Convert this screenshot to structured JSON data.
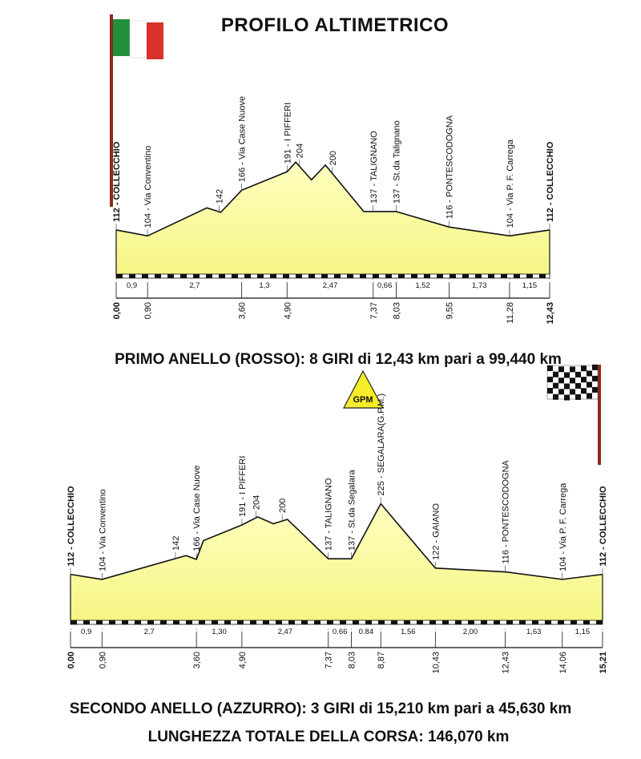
{
  "title": "PROFILO ALTIMETRICO",
  "colors": {
    "profile_fill": "#f6f585",
    "profile_fill_top": "#ffffc0",
    "profile_line": "#111111",
    "gpm_fill": "#f5ec2a",
    "flag_green": "#1f8f3a",
    "flag_red": "#d9312b",
    "checker_dark": "#111111",
    "pole": "#8b2a1a"
  },
  "icons": {
    "italian_flag": "italian-flag-icon",
    "checkered_flag": "checkered-flag-icon",
    "gpm": "gpm-triangle-icon"
  },
  "gpm_label": "GPM",
  "chart_data": [
    {
      "type": "area",
      "name": "primo-anello",
      "caption": "PRIMO ANELLO (ROSSO): 8 GIRI di 12,43 km pari a 99,440 km",
      "xlim": [
        0,
        12.43
      ],
      "profile": [
        [
          0.0,
          112
        ],
        [
          0.9,
          104
        ],
        [
          2.6,
          142
        ],
        [
          3.0,
          136
        ],
        [
          3.6,
          166
        ],
        [
          4.9,
          191
        ],
        [
          5.15,
          204
        ],
        [
          5.6,
          180
        ],
        [
          6.0,
          200
        ],
        [
          7.1,
          137
        ],
        [
          8.03,
          137
        ],
        [
          9.55,
          116
        ],
        [
          11.28,
          104
        ],
        [
          12.43,
          112
        ]
      ],
      "waypoints": [
        {
          "km": 0.0,
          "label": "112 - COLLECCHIO",
          "bold": true
        },
        {
          "km": 0.9,
          "label": "104 - Via Conventino"
        },
        {
          "km": 2.95,
          "label": "142"
        },
        {
          "km": 3.6,
          "label": "166 - Via Case Nuove"
        },
        {
          "km": 4.9,
          "label": "191 - I PIFFERI"
        },
        {
          "km": 5.25,
          "label": "204"
        },
        {
          "km": 6.2,
          "label": "200"
        },
        {
          "km": 7.37,
          "label": "137 - TALIGNANO"
        },
        {
          "km": 8.03,
          "label": "137 - St.da Talignano"
        },
        {
          "km": 9.55,
          "label": "116 - PONTESCODOGNA"
        },
        {
          "km": 11.28,
          "label": "104 - Via P. F. Carrega"
        },
        {
          "km": 12.43,
          "label": "112 - COLLECCHIO",
          "bold": true
        }
      ],
      "segments": [
        "0,9",
        "2,7",
        "1,3",
        "2,47",
        "0,66",
        "1,52",
        "1,73",
        "1,15"
      ],
      "km_marks": [
        "0,00",
        "0,90",
        "3,60",
        "4,90",
        "7,37",
        "8,03",
        "9,55",
        "11,28",
        "12,43"
      ]
    },
    {
      "type": "area",
      "name": "secondo-anello",
      "caption": "SECONDO ANELLO (AZZURRO): 3 GIRI di 15,210 km pari a 45,630 km",
      "xlim": [
        0,
        15.21
      ],
      "profile": [
        [
          0.0,
          112
        ],
        [
          0.9,
          104
        ],
        [
          3.3,
          142
        ],
        [
          3.6,
          136
        ],
        [
          3.8,
          166
        ],
        [
          4.9,
          191
        ],
        [
          5.35,
          204
        ],
        [
          5.8,
          193
        ],
        [
          6.2,
          200
        ],
        [
          7.37,
          137
        ],
        [
          8.03,
          137
        ],
        [
          8.87,
          225
        ],
        [
          10.43,
          122
        ],
        [
          12.43,
          116
        ],
        [
          14.06,
          104
        ],
        [
          15.21,
          112
        ]
      ],
      "waypoints": [
        {
          "km": 0.0,
          "label": "112 - COLLECCHIO",
          "bold": true
        },
        {
          "km": 0.9,
          "label": "104 - Via Conventino"
        },
        {
          "km": 3.0,
          "label": "142"
        },
        {
          "km": 3.6,
          "label": "166 - Via Case Nuove"
        },
        {
          "km": 4.9,
          "label": "191 - I PIFFERI"
        },
        {
          "km": 5.3,
          "label": "204"
        },
        {
          "km": 6.05,
          "label": "200"
        },
        {
          "km": 7.37,
          "label": "137 - TALIGNANO"
        },
        {
          "km": 8.03,
          "label": "137 - St.da Segalara"
        },
        {
          "km": 8.87,
          "label": "225 - SEGALARA(G.P.M.)"
        },
        {
          "km": 10.43,
          "label": "122 - GAIANO"
        },
        {
          "km": 12.43,
          "label": "116 - PONTESCODOGNA"
        },
        {
          "km": 14.06,
          "label": "104 - Via P. F. Carrega"
        },
        {
          "km": 15.21,
          "label": "112 - COLLECCHIO",
          "bold": true
        }
      ],
      "segments": [
        "0,9",
        "2,7",
        "1,30",
        "2,47",
        "0.66",
        "0.84",
        "1,56",
        "2,00",
        "1,63",
        "1,15"
      ],
      "km_marks": [
        "0,00",
        "0,90",
        "3,60",
        "4,90",
        "7,37",
        "8,03",
        "8,87",
        "10,43",
        "12,43",
        "14,06",
        "15,21"
      ]
    }
  ],
  "total": "LUNGHEZZA TOTALE DELLA CORSA: 146,070 km"
}
